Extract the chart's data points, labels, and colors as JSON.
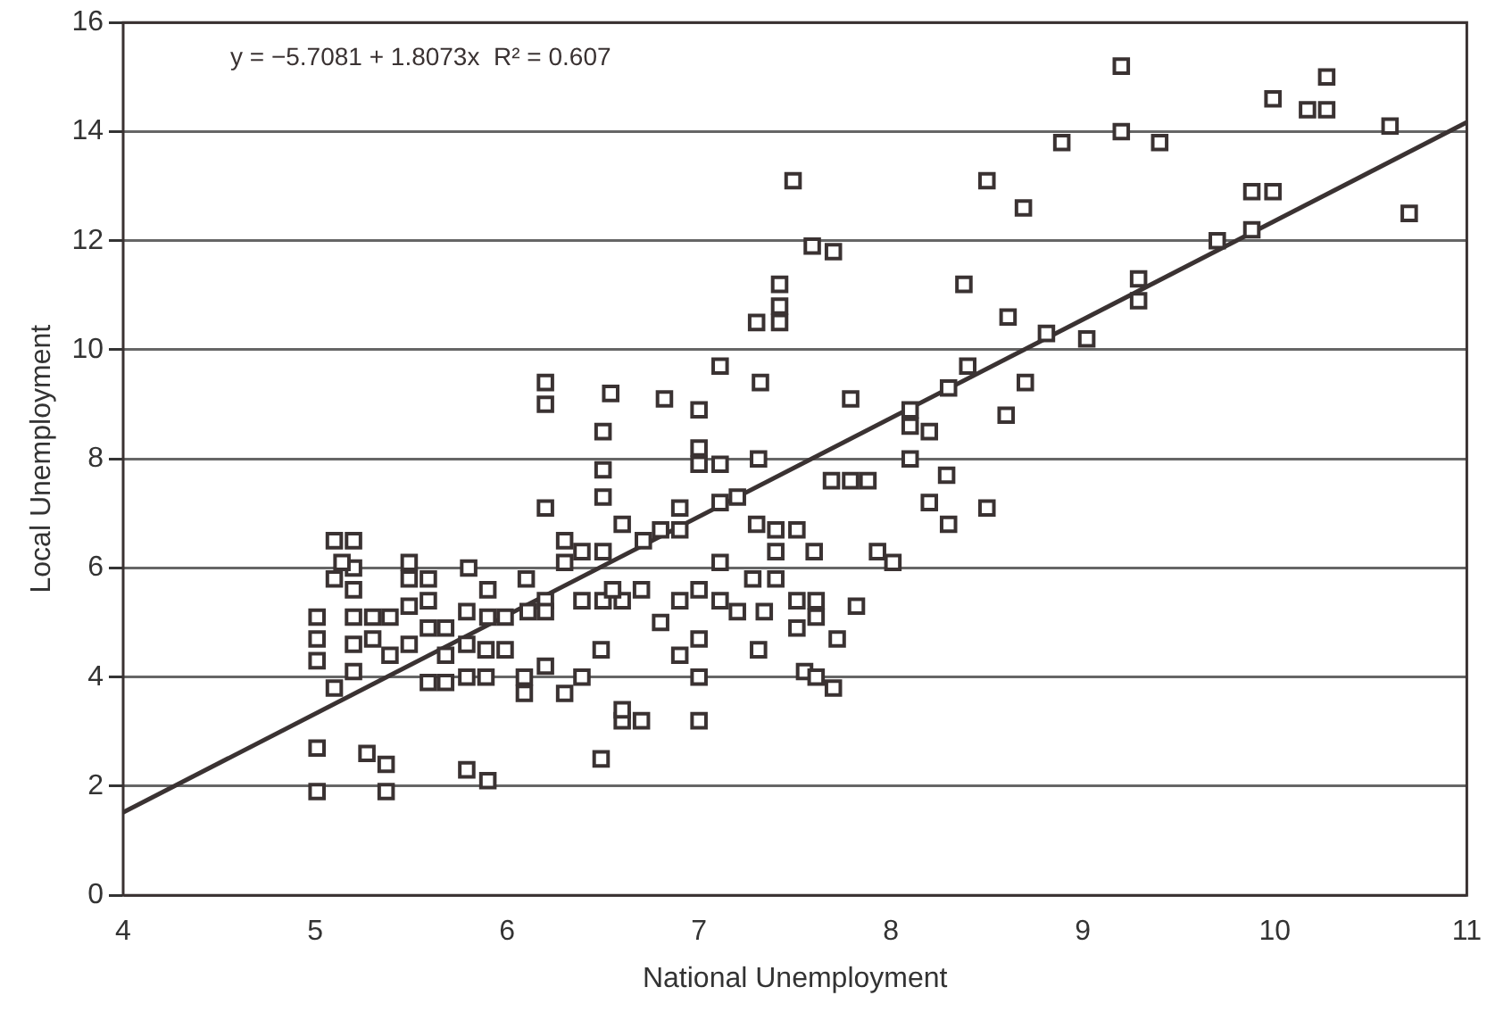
{
  "chart_data": {
    "type": "scatter",
    "xlabel": "National Unemployment",
    "ylabel": "Local Unemployment",
    "annotations": [
      "y = −5.7081 + 1.8073x  R² = 0.607"
    ],
    "xlim": [
      4,
      11
    ],
    "ylim": [
      0,
      16
    ],
    "xticks": [
      4,
      5,
      6,
      7,
      8,
      9,
      10,
      11
    ],
    "yticks": [
      0,
      2,
      4,
      6,
      8,
      10,
      12,
      14,
      16
    ],
    "grid": "y",
    "legend": false,
    "marker": "square",
    "series": [
      {
        "color": "#3a3232",
        "x": [
          9.2,
          9.2,
          8.89,
          9.4,
          9.99,
          10.27,
          10.27,
          10.17,
          10.6,
          10.7,
          9.7,
          9.88,
          9.88,
          9.99,
          8.5,
          8.69,
          7.49,
          7.59,
          7.7,
          8.38,
          9.29,
          9.29,
          7.42,
          7.42,
          7.3,
          7.42,
          8.61,
          8.81,
          9.02,
          7.11,
          6.2,
          6.2,
          6.82,
          7.0,
          7.32,
          7.79,
          6.54,
          8.4,
          8.3,
          8.7,
          8.6,
          8.1,
          8.1,
          8.2,
          8.29,
          8.5,
          8.2,
          8.3,
          8.1,
          7.69,
          7.79,
          7.88,
          7.0,
          7.0,
          7.11,
          7.31,
          7.93,
          8.01,
          6.2,
          6.5,
          6.5,
          6.39,
          6.5,
          6.6,
          6.71,
          6.8,
          6.9,
          6.9,
          7.11,
          7.2,
          7.3,
          7.4,
          7.51,
          7.6,
          7.4,
          7.11,
          7.28,
          7.4,
          7.51,
          7.61,
          7.2,
          7.51,
          7.61,
          7.55,
          7.7,
          7.61,
          7.31,
          7.34,
          6.9,
          7.0,
          7.11,
          7.0,
          7.0,
          7.0,
          6.8,
          6.9,
          6.7,
          6.6,
          6.5,
          6.39,
          6.3,
          6.3,
          6.2,
          6.2,
          6.11,
          5.99,
          6.1,
          5.9,
          5.9,
          5.8,
          5.79,
          5.68,
          5.59,
          5.39,
          5.2,
          5.1,
          5.2,
          5.1,
          5.2,
          5.49,
          5.49,
          5.59,
          5.49,
          5.59,
          5.3,
          5.2,
          5.01,
          5.01,
          5.01,
          5.2,
          5.3,
          5.39,
          5.49,
          5.68,
          5.79,
          5.79,
          5.89,
          5.89,
          5.99,
          6.09,
          6.2,
          6.3,
          6.39,
          6.49,
          6.6,
          6.6,
          6.7,
          6.49,
          5.27,
          5.37,
          5.37,
          5.01,
          5.01,
          5.79,
          5.9,
          5.1,
          5.2,
          5.59,
          5.68,
          6.09,
          6.5,
          6.55,
          7.72,
          7.82,
          5.14
        ],
        "values": [
          15.2,
          14.0,
          13.8,
          13.8,
          14.6,
          14.4,
          15.0,
          14.4,
          14.1,
          12.5,
          12.0,
          12.2,
          12.9,
          12.9,
          13.1,
          12.6,
          13.1,
          11.9,
          11.8,
          11.2,
          11.3,
          10.9,
          11.2,
          10.8,
          10.5,
          10.5,
          10.6,
          10.3,
          10.2,
          9.7,
          9.0,
          9.4,
          9.1,
          8.9,
          9.4,
          9.1,
          9.2,
          9.7,
          9.3,
          9.4,
          8.8,
          8.9,
          8.6,
          8.5,
          7.7,
          7.1,
          7.2,
          6.8,
          8.0,
          7.6,
          7.6,
          7.6,
          8.2,
          7.9,
          7.9,
          8.0,
          6.3,
          6.1,
          7.1,
          7.8,
          7.3,
          6.3,
          6.3,
          6.8,
          6.5,
          6.7,
          6.7,
          7.1,
          7.2,
          7.3,
          6.8,
          6.7,
          6.7,
          6.3,
          6.3,
          6.1,
          5.8,
          5.8,
          5.4,
          5.4,
          5.2,
          4.9,
          5.1,
          4.1,
          3.8,
          4.0,
          4.5,
          5.2,
          5.4,
          5.6,
          5.4,
          4.7,
          4.0,
          3.2,
          5.0,
          4.4,
          5.6,
          5.4,
          5.4,
          5.4,
          6.1,
          6.5,
          5.4,
          5.2,
          5.2,
          5.1,
          5.8,
          5.6,
          5.1,
          6.0,
          5.2,
          4.9,
          4.9,
          5.1,
          5.6,
          5.8,
          6.5,
          6.5,
          6.0,
          6.1,
          5.8,
          5.8,
          5.3,
          5.4,
          5.1,
          5.1,
          5.1,
          4.7,
          4.3,
          4.6,
          4.7,
          4.4,
          4.6,
          4.4,
          4.6,
          4.0,
          4.0,
          4.5,
          4.5,
          4.0,
          4.2,
          3.7,
          4.0,
          4.5,
          3.2,
          3.4,
          3.2,
          2.5,
          2.6,
          2.4,
          1.9,
          2.7,
          1.9,
          2.3,
          2.1,
          3.8,
          4.1,
          3.9,
          3.9,
          3.7,
          8.5,
          5.6,
          4.7,
          5.3,
          6.1
        ]
      },
      {
        "type": "line",
        "color": "#3a3232",
        "marker": "none",
        "x": [
          4,
          11
        ],
        "values": [
          1.52,
          14.17
        ]
      }
    ]
  }
}
